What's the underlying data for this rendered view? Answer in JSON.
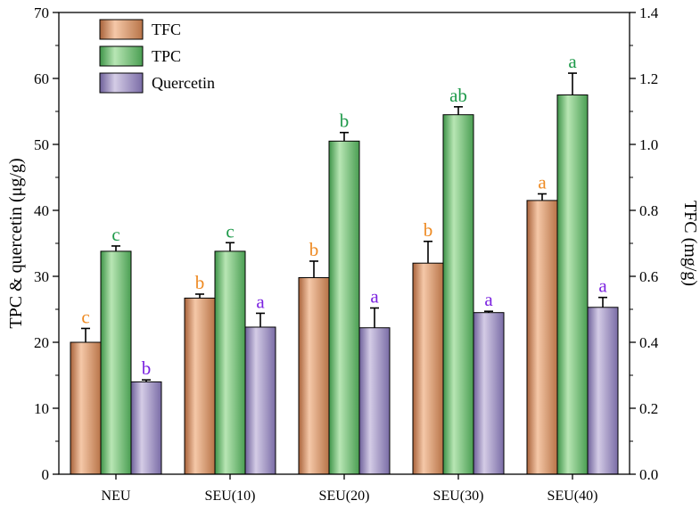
{
  "chart_data": {
    "type": "bar",
    "categories": [
      "NEU",
      "SEU(10)",
      "SEU(20)",
      "SEU(30)",
      "SEU(40)"
    ],
    "left_axis": {
      "label": "TPC & quercetin (μg/g)",
      "range": [
        0,
        70
      ],
      "ticks": [
        "0",
        "10",
        "20",
        "30",
        "40",
        "50",
        "60",
        "70"
      ]
    },
    "right_axis": {
      "label": "TFC (mg/g)",
      "range": [
        0,
        1.4
      ],
      "ticks": [
        "0.0",
        "0.2",
        "0.4",
        "0.6",
        "0.8",
        "1.0",
        "1.2",
        "1.4"
      ]
    },
    "series": [
      {
        "name": "TFC",
        "axis": "right",
        "color": "#d9946a",
        "label_color": "#ee8a22",
        "values": [
          0.4,
          0.534,
          0.596,
          0.64,
          0.83
        ],
        "errors": [
          0.042,
          0.012,
          0.05,
          0.066,
          0.02
        ],
        "letters": [
          "c",
          "b",
          "b",
          "b",
          "a"
        ]
      },
      {
        "name": "TPC",
        "axis": "left",
        "color": "#6fba76",
        "label_color": "#1e9a4a",
        "values": [
          33.8,
          33.8,
          50.5,
          54.5,
          57.5
        ],
        "errors": [
          0.8,
          1.3,
          1.3,
          1.2,
          3.3
        ],
        "letters": [
          "c",
          "c",
          "b",
          "ab",
          "a"
        ]
      },
      {
        "name": "Quercetin",
        "axis": "left",
        "color": "#9c8ec0",
        "label_color": "#7b22e0",
        "values": [
          14.0,
          22.3,
          22.2,
          24.5,
          25.3
        ],
        "errors": [
          0.3,
          2.1,
          3.0,
          0.2,
          1.5
        ],
        "letters": [
          "b",
          "a",
          "a",
          "a",
          "a"
        ]
      }
    ],
    "legend_position": "top-left"
  }
}
